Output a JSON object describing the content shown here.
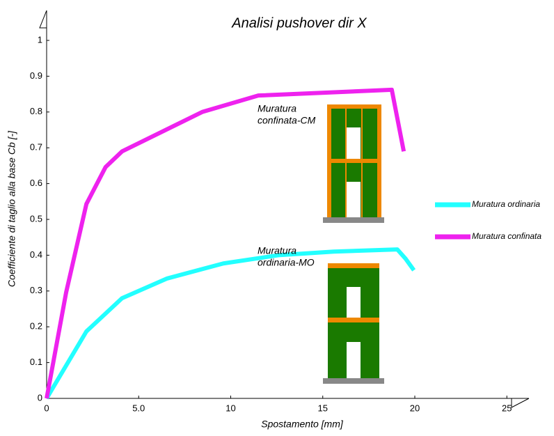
{
  "chart_data": {
    "type": "line",
    "title": "Analisi pushover dir X",
    "x_label": "Spostamento [mm]",
    "y_label": "Coefficiente di taglio alla base Cb [-]",
    "xlim": [
      0,
      26.2
    ],
    "ylim": [
      0,
      1.08
    ],
    "xticks": [
      0,
      {
        "value": 5,
        "label": "5.0"
      },
      10,
      15,
      20,
      25
    ],
    "yticks": [
      0,
      0.1,
      0.2,
      0.3,
      0.4,
      0.5,
      0.6,
      0.7,
      0.8,
      0.9,
      1
    ],
    "series": [
      {
        "name": "Muratura ordinaria",
        "color": "#22ffff",
        "x": [
          0,
          2.16,
          4.1,
          6.55,
          9.6,
          12.6,
          15.6,
          19.05,
          19.5,
          19.95
        ],
        "values": [
          0,
          0.187,
          0.28,
          0.335,
          0.377,
          0.4,
          0.41,
          0.416,
          0.39,
          0.358
        ]
      },
      {
        "name": "Muratura confinata",
        "color": "#ee22ee",
        "x": [
          0,
          1.06,
          2.16,
          3.2,
          4.1,
          8.45,
          11.5,
          18.75,
          19.4
        ],
        "values": [
          0,
          0.296,
          0.543,
          0.646,
          0.69,
          0.8,
          0.846,
          0.862,
          0.69
        ]
      }
    ],
    "annotations": [
      {
        "lines": [
          "Muratura",
          "confinata-CM"
        ]
      },
      {
        "lines": [
          "Muratura",
          "ordinaria-MO"
        ]
      }
    ]
  }
}
